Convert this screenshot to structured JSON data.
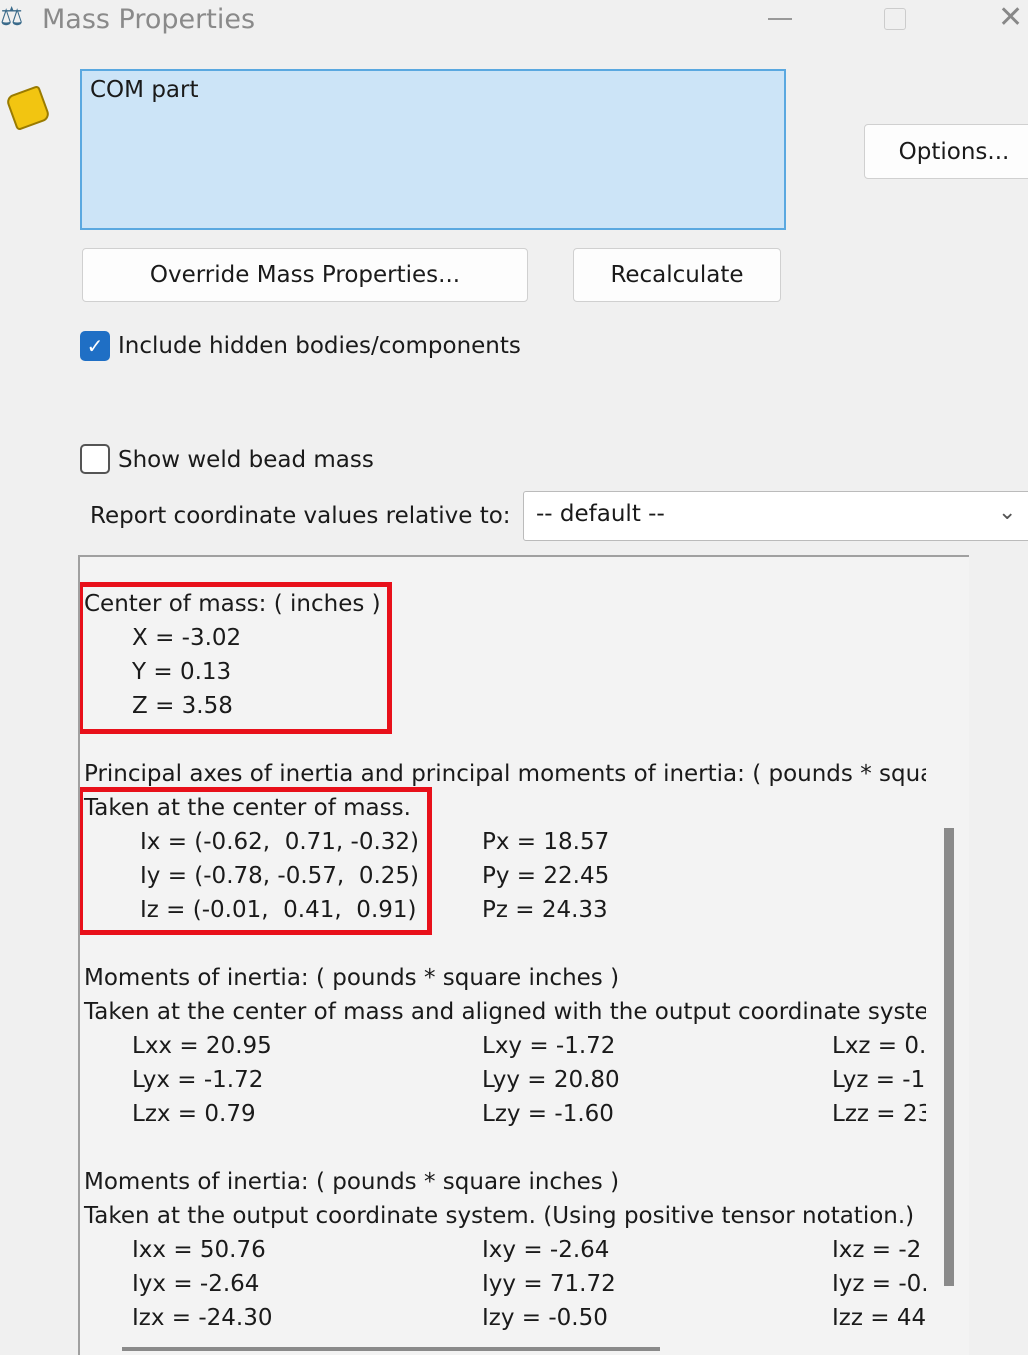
{
  "window": {
    "title": "Mass Properties",
    "minimize_icon": "minimize-icon",
    "maximize_icon": "maximize-icon",
    "close_icon": "close-icon"
  },
  "selection": {
    "items": [
      "COM part"
    ]
  },
  "buttons": {
    "options": "Options...",
    "override": "Override Mass Properties...",
    "recalculate": "Recalculate"
  },
  "checkboxes": {
    "hidden_label": "Include hidden bodies/components",
    "hidden_checked": true,
    "weld_label": "Show weld bead mass",
    "weld_checked": false
  },
  "coord": {
    "label": "Report coordinate values relative to:",
    "value": "-- default --"
  },
  "results": {
    "com_header": "Center of mass: ( inches )",
    "com": [
      "X = -3.02",
      "Y = 0.13",
      "Z = 3.58"
    ],
    "principal_header": "Principal axes of inertia and principal moments of inertia: ( pounds * square inches )",
    "principal_sub": "Taken at the center of mass.",
    "axes": [
      "Ix = (-0.62,  0.71, -0.32)",
      "Iy = (-0.78, -0.57,  0.25)",
      "Iz = (-0.01,  0.41,  0.91)"
    ],
    "moments": [
      "Px = 18.57",
      "Py = 22.45",
      "Pz = 24.33"
    ],
    "moi1_header": "Moments of inertia: ( pounds * square inches )",
    "moi1_sub": "Taken at the center of mass and aligned with the output coordinate system.",
    "moi1": [
      [
        "Lxx = 20.95",
        "Lxy = -1.72",
        "Lxz = 0."
      ],
      [
        "Lyx = -1.72",
        "Lyy = 20.80",
        "Lyz = -1"
      ],
      [
        "Lzx = 0.79",
        "Lzy = -1.60",
        "Lzz = 23"
      ]
    ],
    "moi2_header": "Moments of inertia: ( pounds * square inches )",
    "moi2_sub": "Taken at the output coordinate system. (Using positive tensor notation.)",
    "moi2": [
      [
        "Ixx = 50.76",
        "Ixy = -2.64",
        "Ixz = -2"
      ],
      [
        "Iyx = -2.64",
        "Iyy = 71.72",
        "Iyz = -0."
      ],
      [
        "Izx = -24.30",
        "Izy = -0.50",
        "Izz = 44"
      ]
    ]
  },
  "highlight_color": "#e8101a"
}
